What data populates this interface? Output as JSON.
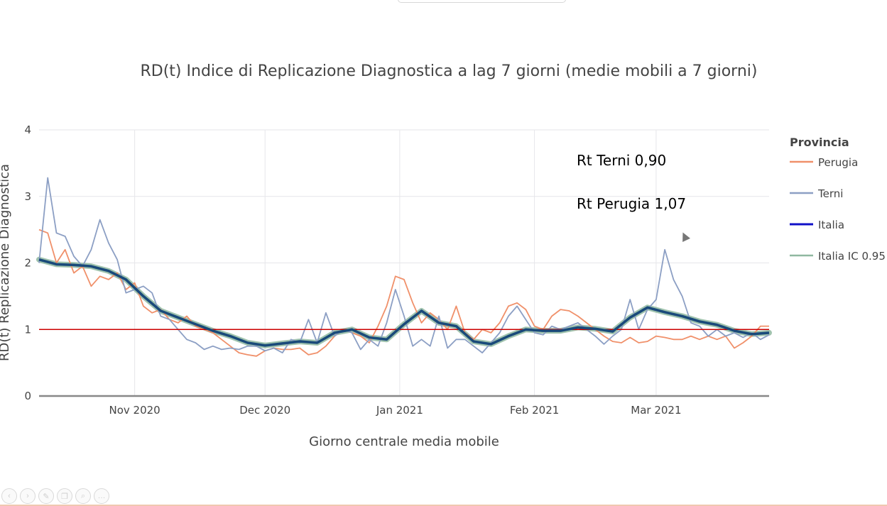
{
  "chart_data": {
    "type": "line",
    "title": "RD(t) Indice di Replicazione Diagnostica a lag 7 giorni (medie mobili a 7 giorni)",
    "xlabel": "Giorno centrale media mobile",
    "ylabel": "RD(t) Replicazione Diagnostica",
    "ylim": [
      0,
      4
    ],
    "xlim": [
      "2020-10-10",
      "2021-03-27"
    ],
    "yticks": [
      "0",
      "1",
      "2",
      "3",
      "4"
    ],
    "xticks": [
      {
        "date": "2020-11-01",
        "label": "Nov 2020"
      },
      {
        "date": "2020-12-01",
        "label": "Dec 2020"
      },
      {
        "date": "2021-01-01",
        "label": "Jan 2021"
      },
      {
        "date": "2021-02-01",
        "label": "Feb 2021"
      },
      {
        "date": "2021-03-01",
        "label": "Mar 2021"
      }
    ],
    "grid": true,
    "legend_title": "Provincia",
    "legend_position": "right",
    "reference_line": {
      "y": 1,
      "color": "#cc0000"
    },
    "series": [
      {
        "name": "Perugia",
        "color": "#f0906a",
        "points": [
          [
            "2020-10-10",
            2.5
          ],
          [
            "2020-10-12",
            2.45
          ],
          [
            "2020-10-14",
            2.0
          ],
          [
            "2020-10-16",
            2.2
          ],
          [
            "2020-10-18",
            1.85
          ],
          [
            "2020-10-20",
            1.95
          ],
          [
            "2020-10-22",
            1.65
          ],
          [
            "2020-10-24",
            1.8
          ],
          [
            "2020-10-26",
            1.75
          ],
          [
            "2020-10-28",
            1.85
          ],
          [
            "2020-10-30",
            1.6
          ],
          [
            "2020-11-01",
            1.7
          ],
          [
            "2020-11-03",
            1.35
          ],
          [
            "2020-11-05",
            1.25
          ],
          [
            "2020-11-07",
            1.3
          ],
          [
            "2020-11-09",
            1.15
          ],
          [
            "2020-11-11",
            1.1
          ],
          [
            "2020-11-13",
            1.2
          ],
          [
            "2020-11-15",
            1.05
          ],
          [
            "2020-11-17",
            1.0
          ],
          [
            "2020-11-19",
            0.95
          ],
          [
            "2020-11-21",
            0.85
          ],
          [
            "2020-11-23",
            0.75
          ],
          [
            "2020-11-25",
            0.65
          ],
          [
            "2020-11-27",
            0.62
          ],
          [
            "2020-11-29",
            0.6
          ],
          [
            "2020-12-01",
            0.68
          ],
          [
            "2020-12-03",
            0.72
          ],
          [
            "2020-12-05",
            0.7
          ],
          [
            "2020-12-07",
            0.7
          ],
          [
            "2020-12-09",
            0.72
          ],
          [
            "2020-12-11",
            0.62
          ],
          [
            "2020-12-13",
            0.65
          ],
          [
            "2020-12-15",
            0.75
          ],
          [
            "2020-12-17",
            0.9
          ],
          [
            "2020-12-19",
            1.0
          ],
          [
            "2020-12-21",
            0.95
          ],
          [
            "2020-12-23",
            0.9
          ],
          [
            "2020-12-25",
            0.8
          ],
          [
            "2020-12-27",
            1.05
          ],
          [
            "2020-12-29",
            1.35
          ],
          [
            "2020-12-31",
            1.8
          ],
          [
            "2021-01-02",
            1.75
          ],
          [
            "2021-01-04",
            1.4
          ],
          [
            "2021-01-06",
            1.1
          ],
          [
            "2021-01-08",
            1.25
          ],
          [
            "2021-01-10",
            1.15
          ],
          [
            "2021-01-12",
            1.0
          ],
          [
            "2021-01-14",
            1.35
          ],
          [
            "2021-01-16",
            0.95
          ],
          [
            "2021-01-18",
            0.85
          ],
          [
            "2021-01-20",
            1.0
          ],
          [
            "2021-01-22",
            0.95
          ],
          [
            "2021-01-24",
            1.1
          ],
          [
            "2021-01-26",
            1.35
          ],
          [
            "2021-01-28",
            1.4
          ],
          [
            "2021-01-30",
            1.3
          ],
          [
            "2021-02-01",
            1.05
          ],
          [
            "2021-02-03",
            1.0
          ],
          [
            "2021-02-05",
            1.2
          ],
          [
            "2021-02-07",
            1.3
          ],
          [
            "2021-02-09",
            1.28
          ],
          [
            "2021-02-11",
            1.2
          ],
          [
            "2021-02-13",
            1.1
          ],
          [
            "2021-02-15",
            1.0
          ],
          [
            "2021-02-17",
            0.9
          ],
          [
            "2021-02-19",
            0.82
          ],
          [
            "2021-02-21",
            0.8
          ],
          [
            "2021-02-23",
            0.88
          ],
          [
            "2021-02-25",
            0.8
          ],
          [
            "2021-02-27",
            0.82
          ],
          [
            "2021-03-01",
            0.9
          ],
          [
            "2021-03-03",
            0.88
          ],
          [
            "2021-03-05",
            0.85
          ],
          [
            "2021-03-07",
            0.85
          ],
          [
            "2021-03-09",
            0.9
          ],
          [
            "2021-03-11",
            0.85
          ],
          [
            "2021-03-13",
            0.9
          ],
          [
            "2021-03-15",
            0.85
          ],
          [
            "2021-03-17",
            0.9
          ],
          [
            "2021-03-19",
            0.72
          ],
          [
            "2021-03-21",
            0.8
          ],
          [
            "2021-03-23",
            0.9
          ],
          [
            "2021-03-25",
            1.05
          ],
          [
            "2021-03-27",
            1.05
          ]
        ]
      },
      {
        "name": "Terni",
        "color": "#8c9fc4",
        "points": [
          [
            "2020-10-10",
            2.0
          ],
          [
            "2020-10-12",
            3.28
          ],
          [
            "2020-10-14",
            2.45
          ],
          [
            "2020-10-16",
            2.4
          ],
          [
            "2020-10-18",
            2.1
          ],
          [
            "2020-10-20",
            1.95
          ],
          [
            "2020-10-22",
            2.2
          ],
          [
            "2020-10-24",
            2.65
          ],
          [
            "2020-10-26",
            2.3
          ],
          [
            "2020-10-28",
            2.05
          ],
          [
            "2020-10-30",
            1.55
          ],
          [
            "2020-11-01",
            1.6
          ],
          [
            "2020-11-03",
            1.65
          ],
          [
            "2020-11-05",
            1.55
          ],
          [
            "2020-11-07",
            1.2
          ],
          [
            "2020-11-09",
            1.15
          ],
          [
            "2020-11-11",
            1.0
          ],
          [
            "2020-11-13",
            0.85
          ],
          [
            "2020-11-15",
            0.8
          ],
          [
            "2020-11-17",
            0.7
          ],
          [
            "2020-11-19",
            0.75
          ],
          [
            "2020-11-21",
            0.7
          ],
          [
            "2020-11-23",
            0.72
          ],
          [
            "2020-11-25",
            0.7
          ],
          [
            "2020-11-27",
            0.75
          ],
          [
            "2020-11-29",
            0.75
          ],
          [
            "2020-12-01",
            0.68
          ],
          [
            "2020-12-03",
            0.72
          ],
          [
            "2020-12-05",
            0.65
          ],
          [
            "2020-12-07",
            0.85
          ],
          [
            "2020-12-09",
            0.8
          ],
          [
            "2020-12-11",
            1.15
          ],
          [
            "2020-12-13",
            0.8
          ],
          [
            "2020-12-15",
            1.25
          ],
          [
            "2020-12-17",
            0.9
          ],
          [
            "2020-12-19",
            1.0
          ],
          [
            "2020-12-21",
            0.95
          ],
          [
            "2020-12-23",
            0.7
          ],
          [
            "2020-12-25",
            0.85
          ],
          [
            "2020-12-27",
            0.75
          ],
          [
            "2020-12-29",
            1.1
          ],
          [
            "2020-12-31",
            1.6
          ],
          [
            "2021-01-02",
            1.2
          ],
          [
            "2021-01-04",
            0.75
          ],
          [
            "2021-01-06",
            0.85
          ],
          [
            "2021-01-08",
            0.75
          ],
          [
            "2021-01-10",
            1.2
          ],
          [
            "2021-01-12",
            0.72
          ],
          [
            "2021-01-14",
            0.85
          ],
          [
            "2021-01-16",
            0.85
          ],
          [
            "2021-01-18",
            0.75
          ],
          [
            "2021-01-20",
            0.65
          ],
          [
            "2021-01-22",
            0.8
          ],
          [
            "2021-01-24",
            0.95
          ],
          [
            "2021-01-26",
            1.2
          ],
          [
            "2021-01-28",
            1.35
          ],
          [
            "2021-01-30",
            1.15
          ],
          [
            "2021-02-01",
            0.95
          ],
          [
            "2021-02-03",
            0.92
          ],
          [
            "2021-02-05",
            1.05
          ],
          [
            "2021-02-07",
            1.0
          ],
          [
            "2021-02-09",
            1.05
          ],
          [
            "2021-02-11",
            1.1
          ],
          [
            "2021-02-13",
            1.0
          ],
          [
            "2021-02-15",
            0.9
          ],
          [
            "2021-02-17",
            0.78
          ],
          [
            "2021-02-19",
            0.9
          ],
          [
            "2021-02-21",
            1.0
          ],
          [
            "2021-02-23",
            1.45
          ],
          [
            "2021-02-25",
            1.0
          ],
          [
            "2021-02-27",
            1.3
          ],
          [
            "2021-03-01",
            1.45
          ],
          [
            "2021-03-03",
            2.2
          ],
          [
            "2021-03-05",
            1.75
          ],
          [
            "2021-03-07",
            1.5
          ],
          [
            "2021-03-09",
            1.1
          ],
          [
            "2021-03-11",
            1.05
          ],
          [
            "2021-03-13",
            0.9
          ],
          [
            "2021-03-15",
            1.0
          ],
          [
            "2021-03-17",
            0.9
          ],
          [
            "2021-03-19",
            0.95
          ],
          [
            "2021-03-21",
            0.88
          ],
          [
            "2021-03-23",
            0.95
          ],
          [
            "2021-03-25",
            0.85
          ],
          [
            "2021-03-27",
            0.92
          ]
        ]
      },
      {
        "name": "Italia",
        "color": "#1a4a7a",
        "points": [
          [
            "2020-10-10",
            2.05
          ],
          [
            "2020-10-14",
            1.98
          ],
          [
            "2020-10-18",
            1.97
          ],
          [
            "2020-10-22",
            1.95
          ],
          [
            "2020-10-26",
            1.88
          ],
          [
            "2020-10-30",
            1.75
          ],
          [
            "2020-11-03",
            1.5
          ],
          [
            "2020-11-07",
            1.28
          ],
          [
            "2020-11-11",
            1.18
          ],
          [
            "2020-11-15",
            1.08
          ],
          [
            "2020-11-19",
            0.98
          ],
          [
            "2020-11-23",
            0.9
          ],
          [
            "2020-11-27",
            0.8
          ],
          [
            "2020-12-01",
            0.76
          ],
          [
            "2020-12-05",
            0.79
          ],
          [
            "2020-12-09",
            0.82
          ],
          [
            "2020-12-13",
            0.8
          ],
          [
            "2020-12-17",
            0.95
          ],
          [
            "2020-12-21",
            1.0
          ],
          [
            "2020-12-25",
            0.88
          ],
          [
            "2020-12-29",
            0.85
          ],
          [
            "2021-01-02",
            1.08
          ],
          [
            "2021-01-06",
            1.28
          ],
          [
            "2021-01-10",
            1.1
          ],
          [
            "2021-01-14",
            1.05
          ],
          [
            "2021-01-18",
            0.82
          ],
          [
            "2021-01-22",
            0.78
          ],
          [
            "2021-01-26",
            0.9
          ],
          [
            "2021-01-30",
            1.0
          ],
          [
            "2021-02-03",
            0.98
          ],
          [
            "2021-02-07",
            0.98
          ],
          [
            "2021-02-11",
            1.03
          ],
          [
            "2021-02-15",
            1.01
          ],
          [
            "2021-02-19",
            0.97
          ],
          [
            "2021-02-23",
            1.18
          ],
          [
            "2021-02-27",
            1.33
          ],
          [
            "2021-03-03",
            1.26
          ],
          [
            "2021-03-07",
            1.2
          ],
          [
            "2021-03-11",
            1.12
          ],
          [
            "2021-03-15",
            1.07
          ],
          [
            "2021-03-19",
            0.98
          ],
          [
            "2021-03-23",
            0.93
          ],
          [
            "2021-03-27",
            0.95
          ]
        ]
      },
      {
        "name": "Italia IC 0.95",
        "color": "#8fb8a0"
      }
    ],
    "annotations": [
      "Rt Terni 0,90",
      "Rt Perugia 1,07"
    ]
  },
  "toolbar": {
    "icons": [
      "arrow-left-icon",
      "arrow-right-icon",
      "pen-icon",
      "copy-icon",
      "zoom-icon",
      "more-icon"
    ],
    "glyphs": [
      "‹",
      "›",
      "✎",
      "❐",
      "⌕",
      "…"
    ]
  }
}
